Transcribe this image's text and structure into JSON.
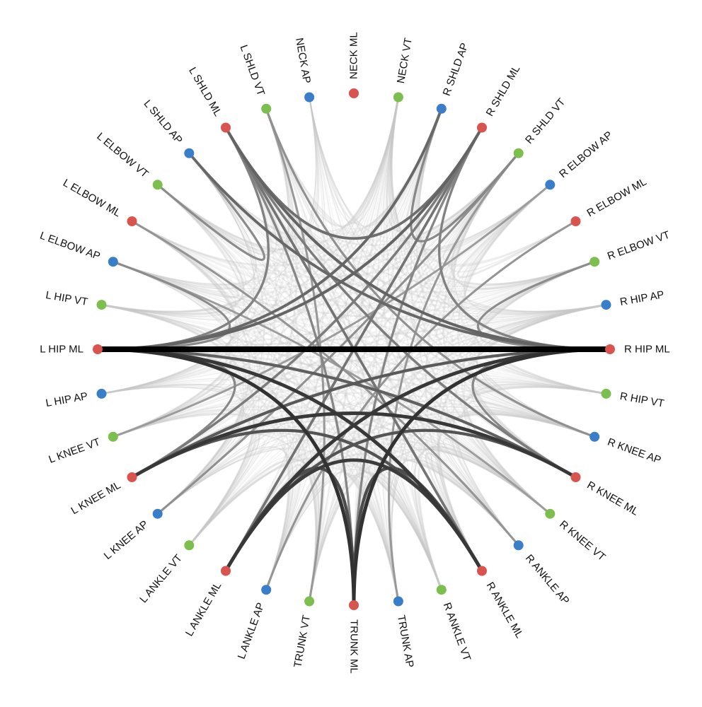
{
  "colors": {
    "ML": "#d9534f",
    "AP": "#3a7dc9",
    "VT": "#7dbf4e",
    "strong_link": "#000000",
    "background_link": "#c8c8c8"
  },
  "nodes": [
    {
      "id": "NECK ML",
      "axis": "ML"
    },
    {
      "id": "NECK VT",
      "axis": "VT"
    },
    {
      "id": "R SHLD AP",
      "axis": "AP"
    },
    {
      "id": "R SHLD ML",
      "axis": "ML"
    },
    {
      "id": "R SHLD VT",
      "axis": "VT"
    },
    {
      "id": "R ELBOW AP",
      "axis": "AP"
    },
    {
      "id": "R ELBOW ML",
      "axis": "ML"
    },
    {
      "id": "R ELBOW VT",
      "axis": "VT"
    },
    {
      "id": "R HIP AP",
      "axis": "AP"
    },
    {
      "id": "R HIP ML",
      "axis": "ML"
    },
    {
      "id": "R HIP VT",
      "axis": "VT"
    },
    {
      "id": "R KNEE AP",
      "axis": "AP"
    },
    {
      "id": "R KNEE ML",
      "axis": "ML"
    },
    {
      "id": "R KNEE VT",
      "axis": "VT"
    },
    {
      "id": "R ANKLE AP",
      "axis": "AP"
    },
    {
      "id": "R ANKLE ML",
      "axis": "ML"
    },
    {
      "id": "R ANKLE VT",
      "axis": "VT"
    },
    {
      "id": "TRUNK AP",
      "axis": "AP"
    },
    {
      "id": "TRUNK ML",
      "axis": "ML"
    },
    {
      "id": "TRUNK VT",
      "axis": "VT"
    },
    {
      "id": "L ANKLE AP",
      "axis": "AP"
    },
    {
      "id": "L ANKLE ML",
      "axis": "ML"
    },
    {
      "id": "L ANKLE VT",
      "axis": "VT"
    },
    {
      "id": "L KNEE AP",
      "axis": "AP"
    },
    {
      "id": "L KNEE ML",
      "axis": "ML"
    },
    {
      "id": "L KNEE VT",
      "axis": "VT"
    },
    {
      "id": "L HIP AP",
      "axis": "AP"
    },
    {
      "id": "L HIP ML",
      "axis": "ML"
    },
    {
      "id": "L HIP VT",
      "axis": "VT"
    },
    {
      "id": "L ELBOW AP",
      "axis": "AP"
    },
    {
      "id": "L ELBOW ML",
      "axis": "ML"
    },
    {
      "id": "L ELBOW VT",
      "axis": "VT"
    },
    {
      "id": "L SHLD AP",
      "axis": "AP"
    },
    {
      "id": "L SHLD ML",
      "axis": "ML"
    },
    {
      "id": "L SHLD VT",
      "axis": "VT"
    },
    {
      "id": "NECK AP",
      "axis": "AP"
    }
  ],
  "strong_links": [
    {
      "source": "L HIP ML",
      "target": "R HIP ML",
      "weight": 1.0
    },
    {
      "source": "L HIP ML",
      "target": "TRUNK ML",
      "weight": 0.75
    },
    {
      "source": "R HIP ML",
      "target": "TRUNK ML",
      "weight": 0.75
    },
    {
      "source": "L HIP ML",
      "target": "R ANKLE ML",
      "weight": 0.72
    },
    {
      "source": "R HIP ML",
      "target": "L ANKLE ML",
      "weight": 0.72
    },
    {
      "source": "L KNEE ML",
      "target": "R KNEE ML",
      "weight": 0.72
    },
    {
      "source": "L ANKLE ML",
      "target": "R ANKLE ML",
      "weight": 0.7
    },
    {
      "source": "L ANKLE ML",
      "target": "TRUNK ML",
      "weight": 0.62
    },
    {
      "source": "R ANKLE ML",
      "target": "TRUNK ML",
      "weight": 0.62
    },
    {
      "source": "L ANKLE ML",
      "target": "R KNEE ML",
      "weight": 0.58
    },
    {
      "source": "R ANKLE ML",
      "target": "L KNEE ML",
      "weight": 0.58
    },
    {
      "source": "L KNEE ML",
      "target": "R HIP ML",
      "weight": 0.55
    },
    {
      "source": "L HIP ML",
      "target": "R KNEE ML",
      "weight": 0.52
    },
    {
      "source": "L HIP ML",
      "target": "R SHLD ML",
      "weight": 0.5
    },
    {
      "source": "R HIP ML",
      "target": "L SHLD ML",
      "weight": 0.5
    },
    {
      "source": "L SHLD ML",
      "target": "R SHLD ML",
      "weight": 0.45
    },
    {
      "source": "L SHLD AP",
      "target": "R HIP ML",
      "weight": 0.48
    },
    {
      "source": "R SHLD AP",
      "target": "L HIP ML",
      "weight": 0.48
    },
    {
      "source": "L SHLD ML",
      "target": "R ANKLE ML",
      "weight": 0.42
    },
    {
      "source": "R SHLD ML",
      "target": "L ANKLE ML",
      "weight": 0.42
    },
    {
      "source": "L SHLD ML",
      "target": "R KNEE ML",
      "weight": 0.38
    },
    {
      "source": "R SHLD ML",
      "target": "L KNEE ML",
      "weight": 0.38
    },
    {
      "source": "L HIP ML",
      "target": "L SHLD ML",
      "weight": 0.35
    },
    {
      "source": "R HIP ML",
      "target": "R SHLD ML",
      "weight": 0.35
    },
    {
      "source": "L SHLD ML",
      "target": "TRUNK ML",
      "weight": 0.33
    },
    {
      "source": "R SHLD ML",
      "target": "TRUNK ML",
      "weight": 0.33
    },
    {
      "source": "R SHLD AP",
      "target": "R SHLD VT",
      "weight": 0.32
    },
    {
      "source": "L SHLD AP",
      "target": "L ELBOW VT",
      "weight": 0.3
    },
    {
      "source": "L HIP ML",
      "target": "L KNEE ML",
      "weight": 0.32
    },
    {
      "source": "R HIP ML",
      "target": "R KNEE ML",
      "weight": 0.32
    },
    {
      "source": "R HIP ML",
      "target": "R ELBOW VT",
      "weight": 0.3
    },
    {
      "source": "L HIP ML",
      "target": "L ELBOW AP",
      "weight": 0.3
    },
    {
      "source": "R SHLD VT",
      "target": "L KNEE AP",
      "weight": 0.28
    },
    {
      "source": "L SHLD VT",
      "target": "R KNEE AP",
      "weight": 0.28
    },
    {
      "source": "R ELBOW ML",
      "target": "L ANKLE AP",
      "weight": 0.26
    },
    {
      "source": "L ELBOW ML",
      "target": "R ANKLE AP",
      "weight": 0.26
    },
    {
      "source": "TRUNK AP",
      "target": "R SHLD VT",
      "weight": 0.24
    },
    {
      "source": "TRUNK VT",
      "target": "L SHLD VT",
      "weight": 0.24
    },
    {
      "source": "L KNEE VT",
      "target": "R ELBOW AP",
      "weight": 0.22
    },
    {
      "source": "R KNEE VT",
      "target": "L ELBOW AP",
      "weight": 0.22
    }
  ]
}
